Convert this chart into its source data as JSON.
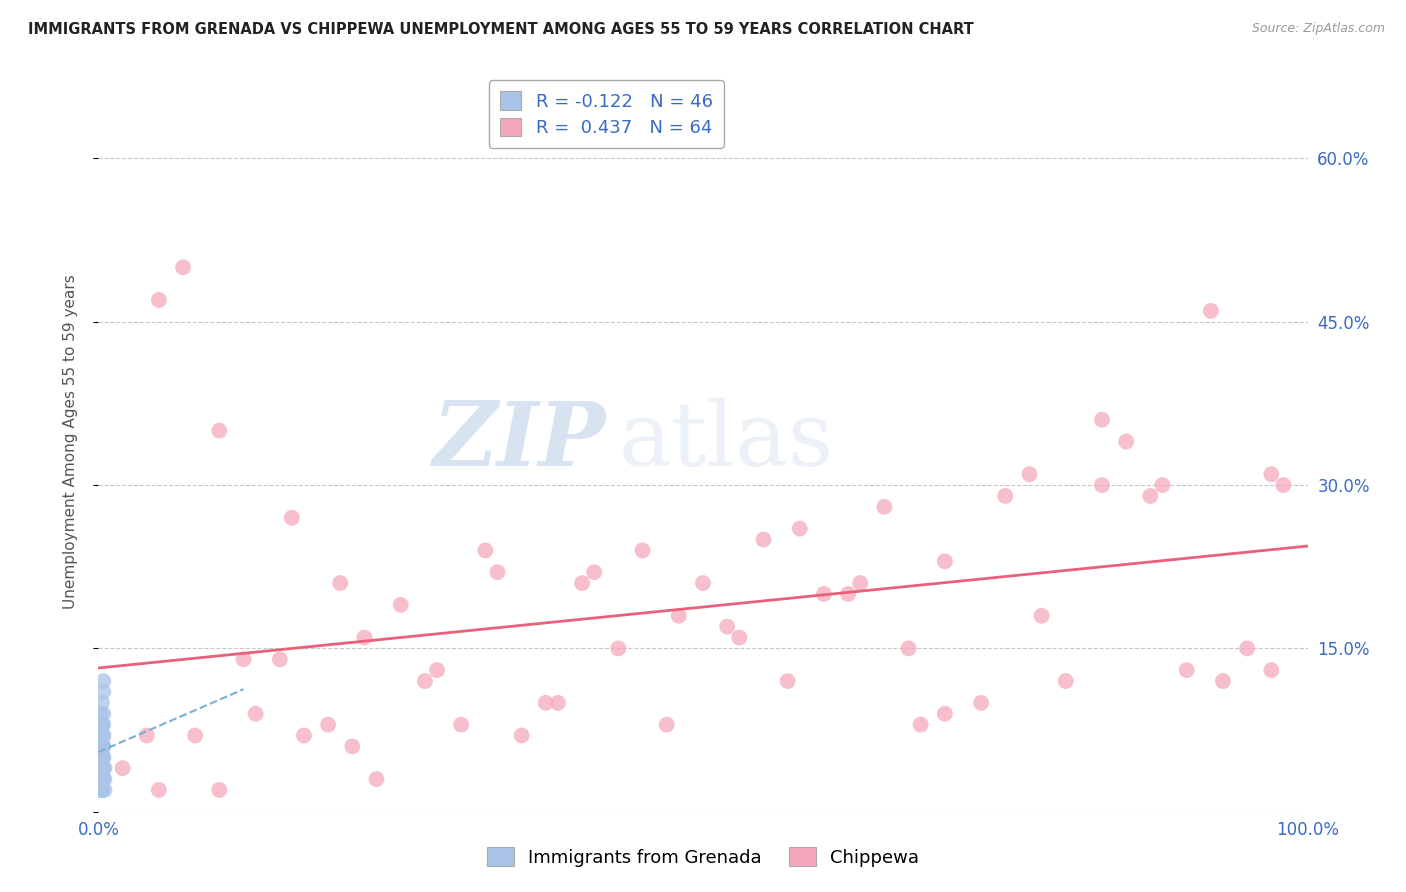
{
  "title": "IMMIGRANTS FROM GRENADA VS CHIPPEWA UNEMPLOYMENT AMONG AGES 55 TO 59 YEARS CORRELATION CHART",
  "source": "Source: ZipAtlas.com",
  "ylabel": "Unemployment Among Ages 55 to 59 years",
  "xlim": [
    0,
    1.0
  ],
  "ylim": [
    0,
    0.68
  ],
  "yticks": [
    0.0,
    0.15,
    0.3,
    0.45,
    0.6
  ],
  "xtick_vals": [
    0.0,
    1.0
  ],
  "xtick_labels": [
    "0.0%",
    "100.0%"
  ],
  "blue_R": -0.122,
  "blue_N": 46,
  "pink_R": 0.437,
  "pink_N": 64,
  "blue_color": "#aac4e8",
  "pink_color": "#f5a8bc",
  "blue_line_color": "#7aafd4",
  "pink_line_color": "#e8607a",
  "watermark_zip": "ZIP",
  "watermark_atlas": "atlas",
  "legend_label_blue": "Immigrants from Grenada",
  "legend_label_pink": "Chippewa",
  "blue_x": [
    0.003,
    0.002,
    0.004,
    0.003,
    0.005,
    0.002,
    0.004,
    0.003,
    0.002,
    0.004,
    0.003,
    0.002,
    0.004,
    0.003,
    0.005,
    0.002,
    0.003,
    0.004,
    0.002,
    0.003,
    0.004,
    0.003,
    0.002,
    0.004,
    0.003,
    0.002,
    0.004,
    0.003,
    0.002,
    0.004,
    0.003,
    0.002,
    0.005,
    0.003,
    0.002,
    0.004,
    0.003,
    0.002,
    0.004,
    0.003,
    0.002,
    0.004,
    0.003,
    0.002,
    0.004,
    0.003
  ],
  "blue_y": [
    0.1,
    0.08,
    0.12,
    0.06,
    0.04,
    0.09,
    0.07,
    0.05,
    0.03,
    0.11,
    0.02,
    0.08,
    0.06,
    0.04,
    0.03,
    0.07,
    0.05,
    0.09,
    0.02,
    0.06,
    0.04,
    0.08,
    0.03,
    0.05,
    0.07,
    0.02,
    0.06,
    0.04,
    0.08,
    0.03,
    0.05,
    0.07,
    0.02,
    0.06,
    0.04,
    0.08,
    0.03,
    0.05,
    0.07,
    0.02,
    0.06,
    0.04,
    0.08,
    0.03,
    0.05,
    0.07
  ],
  "pink_x": [
    0.04,
    0.07,
    0.1,
    0.1,
    0.13,
    0.15,
    0.16,
    0.19,
    0.2,
    0.22,
    0.23,
    0.25,
    0.27,
    0.3,
    0.33,
    0.35,
    0.38,
    0.4,
    0.43,
    0.45,
    0.47,
    0.5,
    0.52,
    0.55,
    0.57,
    0.6,
    0.62,
    0.65,
    0.67,
    0.68,
    0.7,
    0.73,
    0.75,
    0.78,
    0.8,
    0.83,
    0.85,
    0.88,
    0.9,
    0.92,
    0.95,
    0.97,
    0.98,
    0.02,
    0.05,
    0.08,
    0.12,
    0.17,
    0.21,
    0.28,
    0.32,
    0.37,
    0.41,
    0.48,
    0.53,
    0.58,
    0.63,
    0.7,
    0.77,
    0.83,
    0.87,
    0.93,
    0.97,
    0.05
  ],
  "pink_y": [
    0.07,
    0.5,
    0.35,
    0.02,
    0.09,
    0.14,
    0.27,
    0.08,
    0.21,
    0.16,
    0.03,
    0.19,
    0.12,
    0.08,
    0.22,
    0.07,
    0.1,
    0.21,
    0.15,
    0.24,
    0.08,
    0.21,
    0.17,
    0.25,
    0.12,
    0.2,
    0.2,
    0.28,
    0.15,
    0.08,
    0.23,
    0.1,
    0.29,
    0.18,
    0.12,
    0.36,
    0.34,
    0.3,
    0.13,
    0.46,
    0.15,
    0.31,
    0.3,
    0.04,
    0.02,
    0.07,
    0.14,
    0.07,
    0.06,
    0.13,
    0.24,
    0.1,
    0.22,
    0.18,
    0.16,
    0.26,
    0.21,
    0.09,
    0.31,
    0.3,
    0.29,
    0.12,
    0.13,
    0.47
  ]
}
